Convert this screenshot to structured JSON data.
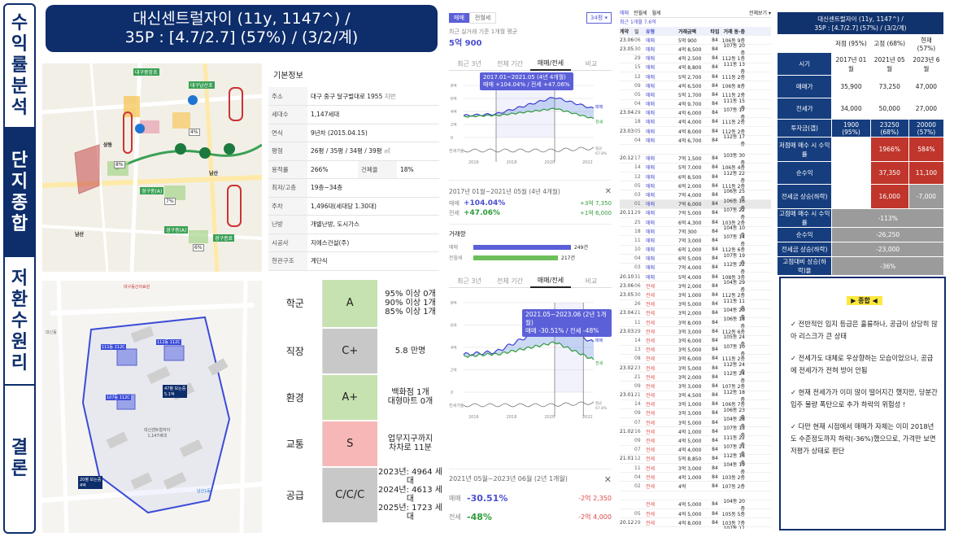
{
  "sidebar": {
    "tabs": [
      {
        "label": "수익률분석",
        "chars": [
          "수",
          "익",
          "률",
          "분",
          "석"
        ],
        "active": false
      },
      {
        "label": "단지종합",
        "chars": [
          "단",
          "지",
          "종",
          "합"
        ],
        "active": true
      },
      {
        "label": "저환수원리",
        "chars": [
          "저",
          "환",
          "수",
          "원",
          "리"
        ],
        "active": false
      },
      {
        "label": "결론",
        "chars": [
          "결",
          "론"
        ],
        "active": false
      }
    ]
  },
  "header": {
    "line1": "대신센트럴자이 (11y, 1147^) /",
    "line2": "35P : [4.7/2.7] (57%) / (3/2/계)"
  },
  "map1": {
    "labels": [
      "대구중앙초",
      "대구남산초",
      "남산",
      "남산",
      "남산",
      "남산",
      "상동",
      "삼덕",
      "대신",
      "명덕",
      "경구중(A)",
      "경구종료",
      "경구중(A)",
      "대구남부초",
      "대구동신초",
      "경구동"
    ],
    "badges": [
      "8%",
      "7%",
      "4%",
      "6%",
      "5%",
      "3%",
      "8%",
      "7%"
    ]
  },
  "map2": {
    "labels": [
      "대구동산의료원",
      "대신동",
      "대한사각원",
      "남산1동",
      "삼덕초",
      "남산동",
      "대신센트럴자이",
      "1,147세대",
      "동명초",
      "대신센트럴",
      "교양센터",
      "남산센터",
      "서문시장",
      "팔달로",
      "달구벌대로",
      "중앙대로",
      "남산네거리"
    ],
    "pins": [
      {
        "name": "111동",
        "value": "112C"
      },
      {
        "name": "112동",
        "value": "112C"
      },
      {
        "name": "107동",
        "value": "112C"
      },
      {
        "name": "47평 보는중",
        "value": "5.1억"
      },
      {
        "name": "20평 보는중",
        "value": "4억"
      }
    ]
  },
  "info": {
    "title": "기본정보",
    "rows": [
      {
        "k": "주소",
        "v": "대구 중구 달구벌대로 1955",
        "extra": "지번"
      },
      {
        "k": "세대수",
        "v": "1,147세대"
      },
      {
        "k": "연식",
        "v": "9년차 (2015.04.15)"
      },
      {
        "k": "평형",
        "v": "26평 / 35평 / 34평 / 39평",
        "extra": "㎡"
      },
      {
        "k": "용적률",
        "v": "266%",
        "k2": "건폐율",
        "v2": "18%"
      },
      {
        "k": "최저/고층",
        "v": "19층~34층"
      },
      {
        "k": "주차",
        "v": "1,496대(세대당 1.30대)"
      },
      {
        "k": "난방",
        "v": "개별난방, 도시가스"
      },
      {
        "k": "시공사",
        "v": "지에스건설(주)"
      },
      {
        "k": "현관구조",
        "v": "계단식"
      }
    ]
  },
  "grades": [
    {
      "k": "학군",
      "g": "A",
      "color": "#c6e2b0",
      "lines": [
        "95% 이상 0개",
        "90% 이상 1개",
        "85% 이상 1개"
      ]
    },
    {
      "k": "직장",
      "g": "C+",
      "color": "#c8c8c8",
      "lines": [
        "5.8 만명"
      ]
    },
    {
      "k": "환경",
      "g": "A+",
      "color": "#c6e2b0",
      "lines": [
        "백화점 1개",
        "대형마트 0개"
      ]
    },
    {
      "k": "교통",
      "g": "S",
      "color": "#f7b7b7",
      "lines": [
        "업무지구까지",
        "차차로 11분"
      ]
    },
    {
      "k": "공급",
      "g": "C/C/C",
      "color": "#c8c8c8",
      "lines": [
        "2023년: 4964 세대",
        "2024년: 4613 세대",
        "2025년: 1723 세대"
      ]
    }
  ],
  "chart_top": {
    "tab_sale": "매매",
    "tab_jeonse": "전월세",
    "size": "34평",
    "caption": "최근 실거래 기준 1개월 평균",
    "price": "5억 900",
    "tabs": [
      "최근 3년",
      "전체 기간",
      "매매/전세",
      "비교"
    ],
    "tip_line1": "2017.01~2021.05 (4년 4개월)",
    "tip_line2": "매매 +104.04% / 전세 +47.06%",
    "y_ticks": [
      "8억",
      "6억",
      "4억",
      "2억",
      "0"
    ],
    "x_ticks": [
      "2016",
      "2018",
      "2020",
      "2022"
    ],
    "legend_sale": "매매",
    "legend_jeonse": "전세",
    "ratio_label": "전세가율",
    "ratio_avg": "평균",
    "ratio_value": "67.8%",
    "period": "2017년 01월~2021년 05월 (4년 4개월)",
    "close": "✕",
    "sale_label": "매매",
    "sale_pct": "+104.04%",
    "sale_amt": "+3억 7,350",
    "jeonse_label": "전세",
    "jeonse_pct": "+47.06%",
    "jeonse_amt": "+1억 6,000",
    "volume_title": "거래량",
    "volume_sale_label": "매매",
    "volume_sale": "249건",
    "volume_jeonse_label": "전월세",
    "volume_jeonse": "217건"
  },
  "chart_bottom": {
    "tabs": [
      "최근 3년",
      "전체 기간",
      "매매/전세",
      "비교"
    ],
    "tip_line1": "2021.05~2023.06 (2년 1개월)",
    "tip_line2": "매매 -30.51% / 전세 -48%",
    "y_ticks": [
      "8억",
      "6억",
      "4억",
      "2억",
      "0"
    ],
    "x_ticks": [
      "2016",
      "2018",
      "2020",
      "2022"
    ],
    "legend_sale": "매매",
    "legend_jeonse": "전세",
    "ratio_label": "전세가율",
    "ratio_avg": "평균",
    "ratio_value": "67.8%",
    "period": "2021년 05월~2023년 06월 (2년 1개월)",
    "close": "✕",
    "sale_label": "매매",
    "sale_pct": "-30.51%",
    "sale_amt": "-2억 2,350",
    "jeonse_label": "전세",
    "jeonse_pct": "-48%",
    "jeonse_amt": "-2억 4,000"
  },
  "tx": {
    "header": [
      "매매",
      "전월세",
      "월세"
    ],
    "header_right": "전체보기 ▾",
    "sub": "최근 1개월 7.6억",
    "col_heads": [
      "계약",
      "일",
      "유형",
      "거래금액",
      "타입",
      "거래 동·층"
    ],
    "rows": [
      [
        "23.06",
        "06",
        "매매",
        "5억 900",
        "84",
        "106동 9층"
      ],
      [
        "23.05",
        "30",
        "매매",
        "4억 8,500",
        "84",
        "107동 20층"
      ],
      [
        "",
        "29",
        "매매",
        "4억 2,500",
        "84",
        "112동 1층"
      ],
      [
        "",
        "15",
        "매매",
        "4억 8,800",
        "84",
        "111동 13층"
      ],
      [
        "",
        "12",
        "매매",
        "5억 2,700",
        "84",
        "111동 2층"
      ],
      [
        "",
        "09",
        "매매",
        "4억 6,500",
        "84",
        "106동 8층"
      ],
      [
        "",
        "05",
        "매매",
        "5억 1,700",
        "84",
        "111동 2층"
      ],
      [
        "",
        "04",
        "매매",
        "4억 9,700",
        "84",
        "111동 15층"
      ],
      [
        "23.04",
        "29",
        "매매",
        "4억 6,000",
        "84",
        "107동 17층"
      ],
      [
        "",
        "18",
        "매매",
        "4억 4,000",
        "84",
        "111동 2층"
      ],
      [
        "23.03",
        "05",
        "매매",
        "4억 8,000",
        "84",
        "112동 2층"
      ],
      [
        "",
        "04",
        "매매",
        "4억 6,700",
        "84",
        "112동 17층"
      ],
      [
        "",
        "",
        "",
        "",
        "",
        ""
      ],
      [
        "20.12",
        "17",
        "매매",
        "7억 1,500",
        "84",
        "103동 30층"
      ],
      [
        "",
        "14",
        "매매",
        "5억 7,000",
        "84",
        "106동 4층"
      ],
      [
        "",
        "12",
        "매매",
        "6억 8,500",
        "84",
        "112동 22층"
      ],
      [
        "",
        "05",
        "매매",
        "6억 2,000",
        "84",
        "111동 2층"
      ],
      [
        "",
        "03",
        "매매",
        "7억 4,000",
        "84",
        "106동 25층"
      ],
      [
        "",
        "01",
        "매매",
        "7억 6,000",
        "84",
        "106동 16층"
      ],
      [
        "20.11",
        "29",
        "매매",
        "7억 5,000",
        "84",
        "107동 22층"
      ],
      [
        "",
        "25",
        "매매",
        "6억 4,300",
        "84",
        "103동 2층"
      ],
      [
        "",
        "18",
        "매매",
        "7억 300",
        "84",
        "104동 10층"
      ],
      [
        "",
        "11",
        "매매",
        "7억 3,000",
        "84",
        "107동 14층"
      ],
      [
        "",
        "10",
        "매매",
        "6억 1,000",
        "84",
        "112동 6층"
      ],
      [
        "",
        "04",
        "매매",
        "6억 5,000",
        "84",
        "107동 19층"
      ],
      [
        "",
        "03",
        "매매",
        "7억 4,000",
        "84",
        "112동 22층"
      ],
      [
        "20.10",
        "31",
        "매매",
        "5억 4,000",
        "84",
        "108동 3층"
      ],
      [
        "23.06",
        "06",
        "전세",
        "3억 2,000",
        "84",
        "104동 29층"
      ],
      [
        "23.05",
        "30",
        "전세",
        "3억 1,000",
        "84",
        "112동 2층"
      ],
      [
        "",
        "26",
        "전세",
        "3억 5,000",
        "84",
        "111동 11층"
      ],
      [
        "23.04",
        "21",
        "전세",
        "3억 2,000",
        "84",
        "104동 20층"
      ],
      [
        "",
        "11",
        "전세",
        "3억 8,000",
        "84",
        "106동 18층"
      ],
      [
        "23.03",
        "29",
        "전세",
        "3억 3,000",
        "84",
        "112동 6층"
      ],
      [
        "",
        "14",
        "전세",
        "3억 6,000",
        "84",
        "105동 24층"
      ],
      [
        "",
        "13",
        "전세",
        "3억 5,000",
        "84",
        "107동 10층"
      ],
      [
        "",
        "08",
        "전세",
        "3억 6,000",
        "84",
        "111동 2층"
      ],
      [
        "23.02",
        "23",
        "전세",
        "3억 5,000",
        "84",
        "112동 24층"
      ],
      [
        "",
        "21",
        "전세",
        "3억 2,000",
        "84",
        "112동 24층"
      ],
      [
        "",
        "09",
        "전세",
        "3억 3,000",
        "84",
        "107동 2층"
      ],
      [
        "23.01",
        "21",
        "전세",
        "3억 4,500",
        "84",
        "112동 18층"
      ],
      [
        "",
        "14",
        "전세",
        "3억 1,000",
        "84",
        "106동 7층"
      ],
      [
        "",
        "09",
        "전세",
        "3억 3,000",
        "84",
        "106동 23층"
      ],
      [
        "",
        "07",
        "전세",
        "3억 5,000",
        "84",
        "104동 28층"
      ],
      [
        "21.02",
        "16",
        "전세",
        "4억 1,000",
        "84",
        "107동 13층"
      ],
      [
        "",
        "09",
        "전세",
        "4억 5,000",
        "84",
        "111동 22층"
      ],
      [
        "",
        "07",
        "전세",
        "4억 4,000",
        "84",
        "107동 21층"
      ],
      [
        "21.01",
        "12",
        "전세",
        "5억 8,850",
        "84",
        "112동 16층"
      ],
      [
        "",
        "11",
        "전세",
        "3억 3,000",
        "84",
        "104동 19층"
      ],
      [
        "",
        "04",
        "전세",
        "4억 1,000",
        "84",
        "103동 2층"
      ],
      [
        "",
        "02",
        "전세",
        "4억",
        "84",
        "107동 2층"
      ],
      [
        "",
        "",
        "",
        "",
        "",
        ""
      ],
      [
        "",
        "",
        "전세",
        "4억 5,000",
        "84",
        "104동 20층"
      ],
      [
        "",
        "05",
        "전세",
        "4억 5,000",
        "84",
        "105동 5층"
      ],
      [
        "20.12",
        "29",
        "전세",
        "4억 8,000",
        "84",
        "103동 7층"
      ],
      [
        "",
        "23",
        "전세",
        "4억 2,000",
        "84",
        "107동 11층"
      ],
      [
        "",
        "20",
        "전세",
        "4억 7,000",
        "84",
        "112동 22층"
      ],
      [
        "",
        "18",
        "전세",
        "4억 3,000",
        "84",
        "106동 23층"
      ],
      [
        "",
        "15",
        "전세",
        "4억 4,000",
        "84",
        "112동 8층"
      ]
    ]
  },
  "summary": {
    "title1": "대신센트럴자이 (11y, 1147^) /",
    "title2": "35P : [4.7/2.7] (57%) / (3/2/계)",
    "col_heads": [
      "저점 (95%)",
      "고점 (68%)",
      "현재 (57%)"
    ],
    "rows": [
      {
        "k": "시기",
        "v": [
          "2017년 01월",
          "2021년 05월",
          "2023년 6월"
        ]
      },
      {
        "k": "매매가",
        "v": [
          "35,900",
          "73,250",
          "47,000"
        ]
      },
      {
        "k": "전세가",
        "v": [
          "34,000",
          "50,000",
          "27,000"
        ]
      },
      {
        "k": "투자금(갭)",
        "v": [
          "1900\n(95%)",
          "23250\n(68%)",
          "20000\n(57%)"
        ]
      },
      {
        "k": "저점매 매수 시 수익률",
        "v": [
          "",
          "1966%",
          "584%"
        ]
      },
      {
        "k": "순수익",
        "v": [
          "",
          "37,350",
          "11,100"
        ]
      },
      {
        "k": "전세금 상승(하락)",
        "v": [
          "",
          "16,000",
          "-7,000"
        ]
      },
      {
        "k": "고점매 매수 시 수익률",
        "v": [
          "-113%"
        ]
      },
      {
        "k": "순수익",
        "v": [
          "-26,250"
        ]
      },
      {
        "k": "전세금 상승(하락)",
        "v": [
          "-23,000"
        ]
      },
      {
        "k": "고점대비 상승(하락)율",
        "v": [
          "-36%"
        ]
      }
    ]
  },
  "conclusion": {
    "tag": "▶ 종합 ◀",
    "points": [
      "✓ 전반적인 입지 등급은 훌륭하나, 공급이 상당히 많아 리스크가 큰 상태",
      "✓ 전세가도 대체로 우상향하는 모습이었으나, 공급에 전세가가 전혀 방어 안됨",
      "✓ 현재 전세가가 이미 많이 떨어지긴 했지만, 당분간 입주 물량 폭탄으로 추가 하락의 위험성 !",
      "✓ 다만 현재 시점에서 매매가 자체는 이미 2018년도 수준정도까지 하락(-36%)했으므로, 가격만 보면 저평가 상태로 판단"
    ]
  }
}
